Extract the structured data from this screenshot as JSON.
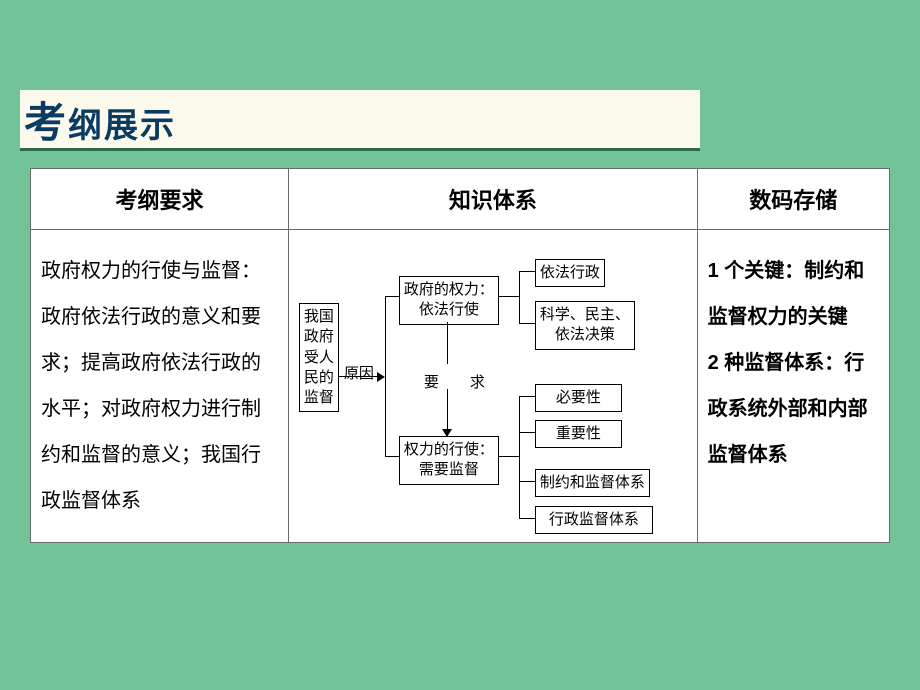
{
  "header": {
    "title_big": "考",
    "title_rest": "纲展示"
  },
  "table": {
    "headers": [
      "考纲要求",
      "知识体系",
      "数码存储"
    ],
    "col1_text": "政府权力的行使与监督：政府依法行政的意义和要求；提高政府依法行政的水平；对政府权力进行制约和监督的意义；我国行政监督体系",
    "col3_text": "1 个关键：制约和监督权力的关键\n2 种监督体系：行政系统外部和内部监督体系"
  },
  "diagram": {
    "root": "我国\n政府\n受人\n民的\n监督",
    "root_label": "原因",
    "mid_top": "政府的权力：\n依法行使",
    "mid_bottom": "权力的行使：\n需要监督",
    "mid_label": "要　求",
    "leaf1": "依法行政",
    "leaf2": "科学、民主、\n依法决策",
    "leaf3": "必要性",
    "leaf4": "重要性",
    "leaf5": "制约和监督体系",
    "leaf6": "行政监督体系",
    "box_border": "#000000",
    "line_color": "#000000"
  }
}
